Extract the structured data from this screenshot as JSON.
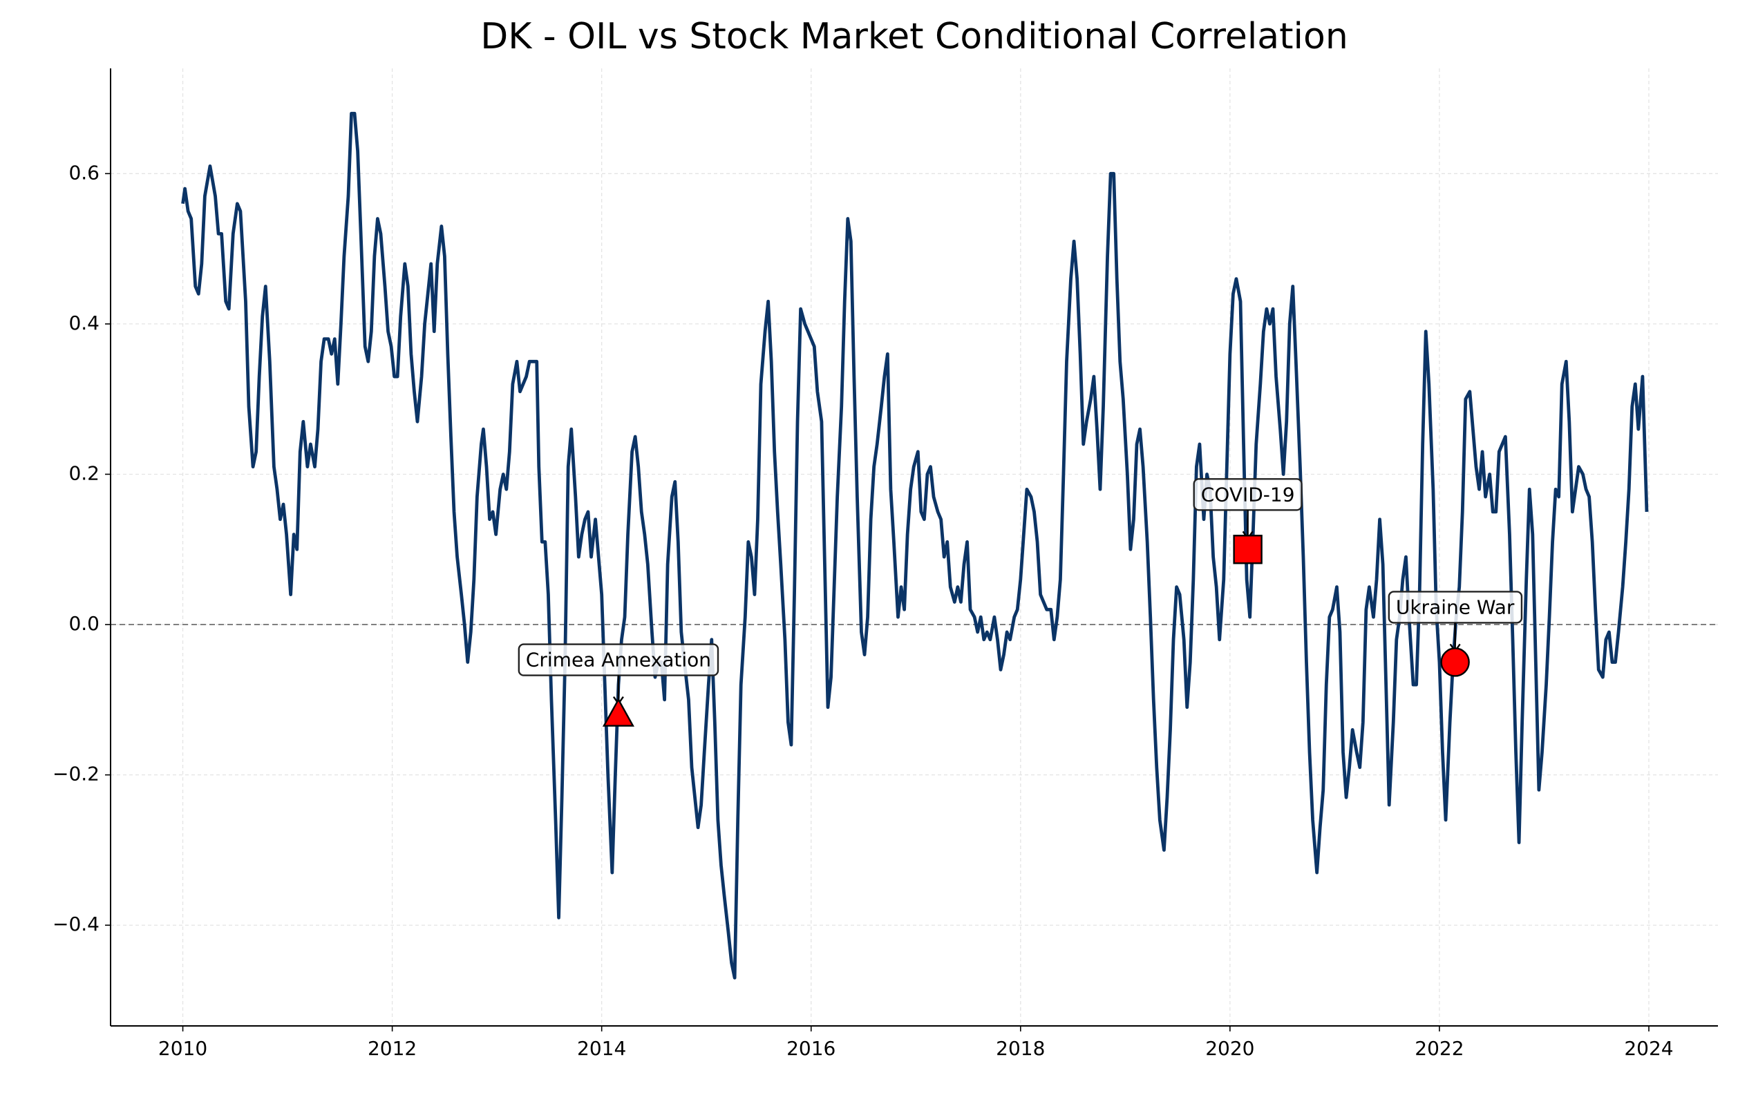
{
  "chart_data": {
    "type": "line",
    "title": "DK - OIL vs Stock Market Conditional Correlation",
    "color": "#0b3466",
    "line_width": 4.8,
    "xlim": [
      2009.31,
      2024.66
    ],
    "ylim": [
      -0.534,
      0.74
    ],
    "xticks": [
      2010,
      2012,
      2014,
      2016,
      2018,
      2020,
      2022,
      2024
    ],
    "yticks": [
      {
        "value": -0.4,
        "label": "−0.4"
      },
      {
        "value": -0.2,
        "label": "−0.2"
      },
      {
        "value": 0,
        "label": "0.0"
      },
      0.2,
      0.4,
      0.6
    ],
    "grid": true,
    "reference_line": 0,
    "x": [
      2010.0,
      2010.02,
      2010.05,
      2010.08,
      2010.12,
      2010.15,
      2010.18,
      2010.21,
      2010.26,
      2010.31,
      2010.34,
      2010.37,
      2010.41,
      2010.44,
      2010.48,
      2010.52,
      2010.55,
      2010.6,
      2010.63,
      2010.67,
      2010.7,
      2010.73,
      2010.76,
      2010.79,
      2010.83,
      2010.87,
      2010.9,
      2010.93,
      2010.96,
      2010.99,
      2011.03,
      2011.06,
      2011.09,
      2011.12,
      2011.15,
      2011.19,
      2011.22,
      2011.26,
      2011.29,
      2011.32,
      2011.35,
      2011.39,
      2011.42,
      2011.45,
      2011.48,
      2011.51,
      2011.54,
      2011.58,
      2011.61,
      2011.64,
      2011.67,
      2011.7,
      2011.74,
      2011.77,
      2011.8,
      2011.83,
      2011.86,
      2011.89,
      2011.93,
      2011.96,
      2011.99,
      2012.02,
      2012.05,
      2012.08,
      2012.12,
      2012.15,
      2012.18,
      2012.21,
      2012.24,
      2012.28,
      2012.31,
      2012.34,
      2012.37,
      2012.4,
      2012.43,
      2012.47,
      2012.5,
      2012.53,
      2012.56,
      2012.59,
      2012.62,
      2012.66,
      2012.69,
      2012.72,
      2012.75,
      2012.78,
      2012.81,
      2012.85,
      2012.87,
      2012.9,
      2012.93,
      2012.96,
      2012.99,
      2013.03,
      2013.06,
      2013.09,
      2013.12,
      2013.15,
      2013.19,
      2013.22,
      2013.25,
      2013.28,
      2013.31,
      2013.34,
      2013.38,
      2013.4,
      2013.43,
      2013.46,
      2013.49,
      2013.52,
      2013.56,
      2013.59,
      2013.62,
      2013.65,
      2013.68,
      2013.71,
      2013.75,
      2013.78,
      2013.81,
      2013.84,
      2013.87,
      2013.9,
      2013.94,
      2013.97,
      2014.0,
      2014.03,
      2014.06,
      2014.1,
      2014.13,
      2014.16,
      2014.19,
      2014.22,
      2014.25,
      2014.29,
      2014.32,
      2014.35,
      2014.38,
      2014.41,
      2014.44,
      2014.48,
      2014.51,
      2014.54,
      2014.57,
      2014.6,
      2014.63,
      2014.67,
      2014.7,
      2014.73,
      2014.76,
      2014.79,
      2014.83,
      2014.86,
      2014.89,
      2014.92,
      2014.95,
      2014.98,
      2015.02,
      2015.05,
      2015.08,
      2015.11,
      2015.14,
      2015.17,
      2015.21,
      2015.24,
      2015.27,
      2015.3,
      2015.33,
      2015.37,
      2015.4,
      2015.43,
      2015.46,
      2015.49,
      2015.52,
      2015.56,
      2015.59,
      2015.62,
      2015.65,
      2015.68,
      2015.71,
      2015.75,
      2015.78,
      2015.81,
      2015.84,
      2015.87,
      2015.9,
      2015.94,
      2015.97,
      2016.0,
      2016.03,
      2016.06,
      2016.1,
      2016.13,
      2016.16,
      2016.19,
      2016.22,
      2016.25,
      2016.29,
      2016.32,
      2016.35,
      2016.38,
      2016.41,
      2016.44,
      2016.48,
      2016.51,
      2016.54,
      2016.57,
      2016.6,
      2016.63,
      2016.67,
      2016.7,
      2016.73,
      2016.76,
      2016.79,
      2016.83,
      2016.86,
      2016.89,
      2016.92,
      2016.95,
      2016.98,
      2017.02,
      2017.05,
      2017.08,
      2017.11,
      2017.14,
      2017.17,
      2017.21,
      2017.24,
      2017.27,
      2017.3,
      2017.33,
      2017.37,
      2017.4,
      2017.43,
      2017.46,
      2017.49,
      2017.52,
      2017.56,
      2017.59,
      2017.62,
      2017.65,
      2017.68,
      2017.71,
      2017.75,
      2017.78,
      2017.81,
      2017.84,
      2017.87,
      2017.9,
      2017.94,
      2017.97,
      2018.0,
      2018.03,
      2018.06,
      2018.1,
      2018.13,
      2018.16,
      2018.19,
      2018.22,
      2018.25,
      2018.29,
      2018.32,
      2018.35,
      2018.38,
      2018.41,
      2018.44,
      2018.48,
      2018.51,
      2018.54,
      2018.57,
      2018.6,
      2018.63,
      2018.67,
      2018.7,
      2018.73,
      2018.76,
      2018.79,
      2018.83,
      2018.86,
      2018.89,
      2018.92,
      2018.95,
      2018.98,
      2019.02,
      2019.05,
      2019.08,
      2019.11,
      2019.14,
      2019.17,
      2019.21,
      2019.24,
      2019.27,
      2019.3,
      2019.33,
      2019.37,
      2019.4,
      2019.43,
      2019.46,
      2019.49,
      2019.52,
      2019.56,
      2019.59,
      2019.62,
      2019.65,
      2019.68,
      2019.71,
      2019.75,
      2019.78,
      2019.81,
      2019.84,
      2019.87,
      2019.9,
      2019.94,
      2019.97,
      2020.0,
      2020.03,
      2020.06,
      2020.1,
      2020.13,
      2020.16,
      2020.19,
      2020.22,
      2020.25,
      2020.29,
      2020.32,
      2020.35,
      2020.38,
      2020.41,
      2020.44,
      2020.48,
      2020.51,
      2020.54,
      2020.57,
      2020.6,
      2020.63,
      2020.67,
      2020.7,
      2020.73,
      2020.76,
      2020.79,
      2020.83,
      2020.86,
      2020.89,
      2020.92,
      2020.95,
      2020.98,
      2021.02,
      2021.05,
      2021.08,
      2021.11,
      2021.14,
      2021.17,
      2021.21,
      2021.24,
      2021.27,
      2021.3,
      2021.33,
      2021.37,
      2021.4,
      2021.43,
      2021.46,
      2021.49,
      2021.52,
      2021.56,
      2021.59,
      2021.62,
      2021.65,
      2021.68,
      2021.71,
      2021.75,
      2021.78,
      2021.81,
      2021.84,
      2021.87,
      2021.9,
      2021.94,
      2021.97,
      2022.0,
      2022.03,
      2022.06,
      2022.1,
      2022.13,
      2022.16,
      2022.19,
      2022.22,
      2022.25,
      2022.29,
      2022.32,
      2022.35,
      2022.38,
      2022.41,
      2022.44,
      2022.48,
      2022.51,
      2022.54,
      2022.57,
      2022.6,
      2022.63,
      2022.67,
      2022.7,
      2022.73,
      2022.76,
      2022.79,
      2022.83,
      2022.86,
      2022.89,
      2022.92,
      2022.95,
      2022.98,
      2023.02,
      2023.05,
      2023.08,
      2023.11,
      2023.14,
      2023.17,
      2023.21,
      2023.24,
      2023.27,
      2023.3,
      2023.33,
      2023.37,
      2023.4,
      2023.43,
      2023.46,
      2023.49,
      2023.52,
      2023.56,
      2023.59,
      2023.62,
      2023.65,
      2023.68,
      2023.71,
      2023.75,
      2023.78,
      2023.81,
      2023.84,
      2023.87,
      2023.9,
      2023.94,
      2023.96,
      2023.98
    ],
    "values": [
      0.56,
      0.58,
      0.55,
      0.54,
      0.45,
      0.44,
      0.48,
      0.57,
      0.61,
      0.57,
      0.52,
      0.52,
      0.43,
      0.42,
      0.52,
      0.56,
      0.55,
      0.43,
      0.29,
      0.21,
      0.23,
      0.33,
      0.41,
      0.45,
      0.35,
      0.21,
      0.18,
      0.14,
      0.16,
      0.12,
      0.04,
      0.12,
      0.1,
      0.23,
      0.27,
      0.21,
      0.24,
      0.21,
      0.26,
      0.35,
      0.38,
      0.38,
      0.36,
      0.38,
      0.32,
      0.4,
      0.49,
      0.57,
      0.68,
      0.68,
      0.63,
      0.52,
      0.37,
      0.35,
      0.39,
      0.49,
      0.54,
      0.52,
      0.45,
      0.39,
      0.37,
      0.33,
      0.33,
      0.41,
      0.48,
      0.45,
      0.36,
      0.31,
      0.27,
      0.33,
      0.4,
      0.44,
      0.48,
      0.39,
      0.48,
      0.53,
      0.49,
      0.36,
      0.25,
      0.15,
      0.09,
      0.04,
      0.0,
      -0.05,
      -0.01,
      0.06,
      0.17,
      0.24,
      0.26,
      0.21,
      0.14,
      0.15,
      0.12,
      0.18,
      0.2,
      0.18,
      0.23,
      0.32,
      0.35,
      0.31,
      0.32,
      0.33,
      0.35,
      0.35,
      0.35,
      0.21,
      0.11,
      0.11,
      0.04,
      -0.1,
      -0.26,
      -0.39,
      -0.23,
      -0.05,
      0.21,
      0.26,
      0.17,
      0.09,
      0.12,
      0.14,
      0.15,
      0.09,
      0.14,
      0.09,
      0.04,
      -0.08,
      -0.2,
      -0.33,
      -0.2,
      -0.08,
      -0.02,
      0.01,
      0.12,
      0.23,
      0.25,
      0.21,
      0.15,
      0.12,
      0.08,
      -0.01,
      -0.07,
      -0.05,
      -0.05,
      -0.1,
      0.08,
      0.17,
      0.19,
      0.11,
      -0.01,
      -0.05,
      -0.1,
      -0.19,
      -0.23,
      -0.27,
      -0.24,
      -0.17,
      -0.08,
      -0.02,
      -0.13,
      -0.26,
      -0.32,
      -0.36,
      -0.41,
      -0.45,
      -0.47,
      -0.26,
      -0.08,
      0.01,
      0.11,
      0.09,
      0.04,
      0.14,
      0.32,
      0.39,
      0.43,
      0.35,
      0.23,
      0.15,
      0.08,
      -0.02,
      -0.13,
      -0.16,
      0.04,
      0.27,
      0.42,
      0.4,
      0.39,
      0.38,
      0.37,
      0.31,
      0.27,
      0.08,
      -0.11,
      -0.07,
      0.05,
      0.17,
      0.29,
      0.43,
      0.54,
      0.51,
      0.33,
      0.17,
      -0.01,
      -0.04,
      0.01,
      0.14,
      0.21,
      0.24,
      0.29,
      0.33,
      0.36,
      0.18,
      0.11,
      0.01,
      0.05,
      0.02,
      0.12,
      0.18,
      0.21,
      0.23,
      0.15,
      0.14,
      0.2,
      0.21,
      0.17,
      0.15,
      0.14,
      0.09,
      0.11,
      0.05,
      0.03,
      0.05,
      0.03,
      0.08,
      0.11,
      0.02,
      0.01,
      -0.01,
      0.01,
      -0.02,
      -0.01,
      -0.02,
      0.01,
      -0.02,
      -0.06,
      -0.04,
      -0.01,
      -0.02,
      0.01,
      0.02,
      0.06,
      0.12,
      0.18,
      0.17,
      0.15,
      0.11,
      0.04,
      0.03,
      0.02,
      0.02,
      -0.02,
      0.01,
      0.06,
      0.2,
      0.35,
      0.46,
      0.51,
      0.46,
      0.36,
      0.24,
      0.27,
      0.3,
      0.33,
      0.26,
      0.18,
      0.29,
      0.49,
      0.6,
      0.6,
      0.46,
      0.35,
      0.3,
      0.2,
      0.1,
      0.14,
      0.24,
      0.26,
      0.21,
      0.11,
      0.01,
      -0.1,
      -0.19,
      -0.26,
      -0.3,
      -0.23,
      -0.14,
      -0.02,
      0.05,
      0.04,
      -0.02,
      -0.11,
      -0.05,
      0.06,
      0.21,
      0.24,
      0.14,
      0.2,
      0.18,
      0.09,
      0.05,
      -0.02,
      0.06,
      0.21,
      0.36,
      0.44,
      0.46,
      0.43,
      0.24,
      0.06,
      0.01,
      0.12,
      0.24,
      0.32,
      0.39,
      0.42,
      0.4,
      0.42,
      0.33,
      0.26,
      0.2,
      0.27,
      0.4,
      0.45,
      0.35,
      0.21,
      0.09,
      -0.05,
      -0.17,
      -0.26,
      -0.33,
      -0.27,
      -0.22,
      -0.08,
      0.01,
      0.02,
      0.05,
      -0.01,
      -0.17,
      -0.23,
      -0.19,
      -0.14,
      -0.17,
      -0.19,
      -0.13,
      0.02,
      0.05,
      0.01,
      0.06,
      0.14,
      0.08,
      -0.08,
      -0.24,
      -0.13,
      -0.02,
      0.01,
      0.06,
      0.09,
      0.01,
      -0.08,
      -0.08,
      0.04,
      0.24,
      0.39,
      0.32,
      0.18,
      0.02,
      -0.05,
      -0.17,
      -0.26,
      -0.13,
      -0.05,
      0.01,
      0.05,
      0.15,
      0.3,
      0.31,
      0.26,
      0.21,
      0.18,
      0.23,
      0.17,
      0.2,
      0.15,
      0.15,
      0.23,
      0.24,
      0.25,
      0.12,
      -0.02,
      -0.17,
      -0.29,
      -0.13,
      0.06,
      0.18,
      0.12,
      -0.05,
      -0.22,
      -0.17,
      -0.08,
      0.01,
      0.11,
      0.18,
      0.17,
      0.32,
      0.35,
      0.27,
      0.15,
      0.18,
      0.21,
      0.2,
      0.18,
      0.17,
      0.11,
      0.02,
      -0.06,
      -0.07,
      -0.02,
      -0.01,
      -0.05,
      -0.05,
      -0.01,
      0.05,
      0.11,
      0.18,
      0.29,
      0.32,
      0.26,
      0.33,
      0.24,
      0.15
    ],
    "annotations": [
      {
        "text": "Crimea Annexation",
        "x": 2014.16,
        "y": -0.12,
        "marker": "triangle",
        "color": "#ff0000"
      },
      {
        "text": "COVID-19",
        "x": 2020.17,
        "y": 0.1,
        "marker": "square",
        "color": "#ff0000"
      },
      {
        "text": "Ukraine War",
        "x": 2022.15,
        "y": -0.05,
        "marker": "circle",
        "color": "#ff0000"
      }
    ]
  }
}
